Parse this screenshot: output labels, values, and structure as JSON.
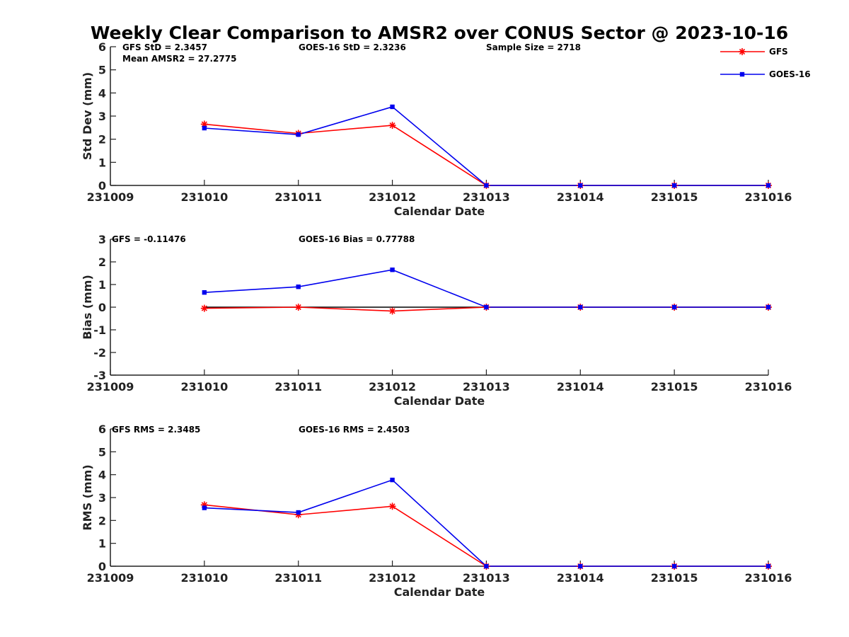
{
  "figure_title": "Weekly Clear Comparison to AMSR2 over CONUS Sector @ 2023-10-16",
  "colors": {
    "gfs": "#ff0000",
    "goes16": "#0000ee",
    "axis": "#222222",
    "zero_line": "#000000"
  },
  "legend": {
    "placement": "top-right",
    "entries": [
      {
        "series": "GFS",
        "marker": "asterisk",
        "color": "#ff0000"
      },
      {
        "series": "GOES-16",
        "marker": "square",
        "color": "#0000ee"
      }
    ]
  },
  "chart_data": [
    {
      "type": "line",
      "xlabel": "Calendar Date",
      "ylabel": "Std Dev (mm)",
      "x": [
        "231009",
        "231010",
        "231011",
        "231012",
        "231013",
        "231014",
        "231015",
        "231016"
      ],
      "yticks": [
        "0",
        "1",
        "2",
        "3",
        "4",
        "5",
        "6"
      ],
      "ylim": [
        0,
        6
      ],
      "grid": false,
      "annotations": [
        "GFS StD = 2.3457",
        "Mean AMSR2 = 27.2775",
        "GOES-16 StD = 2.3236",
        "Sample Size = 2718"
      ],
      "series": [
        {
          "name": "GFS",
          "x": [
            "231010",
            "231011",
            "231012",
            "231013",
            "231014",
            "231015",
            "231016"
          ],
          "values": [
            2.65,
            2.25,
            2.6,
            0,
            0,
            0,
            0
          ]
        },
        {
          "name": "GOES-16",
          "x": [
            "231010",
            "231011",
            "231012",
            "231013",
            "231014",
            "231015",
            "231016"
          ],
          "values": [
            2.48,
            2.2,
            3.4,
            0,
            0,
            0,
            0
          ]
        }
      ]
    },
    {
      "type": "line",
      "xlabel": "Calendar Date",
      "ylabel": "Bias (mm)",
      "x": [
        "231009",
        "231010",
        "231011",
        "231012",
        "231013",
        "231014",
        "231015",
        "231016"
      ],
      "yticks": [
        "-3",
        "-2",
        "-1",
        "0",
        "1",
        "2",
        "3"
      ],
      "ylim": [
        -3,
        3
      ],
      "grid": false,
      "zero_reference_line": true,
      "annotations": [
        "GFS = -0.11476",
        "GOES-16 Bias  = 0.77788"
      ],
      "series": [
        {
          "name": "GFS",
          "x": [
            "231010",
            "231011",
            "231012",
            "231013",
            "231014",
            "231015",
            "231016"
          ],
          "values": [
            -0.05,
            0.0,
            -0.17,
            0,
            0,
            0,
            0
          ]
        },
        {
          "name": "GOES-16",
          "x": [
            "231010",
            "231011",
            "231012",
            "231013",
            "231014",
            "231015",
            "231016"
          ],
          "values": [
            0.65,
            0.9,
            1.65,
            0,
            0,
            0,
            0
          ]
        }
      ]
    },
    {
      "type": "line",
      "xlabel": "Calendar Date",
      "ylabel": "RMS (mm)",
      "x": [
        "231009",
        "231010",
        "231011",
        "231012",
        "231013",
        "231014",
        "231015",
        "231016"
      ],
      "yticks": [
        "0",
        "1",
        "2",
        "3",
        "4",
        "5",
        "6"
      ],
      "ylim": [
        0,
        6
      ],
      "grid": false,
      "annotations": [
        "GFS RMS = 2.3485",
        "GOES-16 RMS = 2.4503"
      ],
      "series": [
        {
          "name": "GFS",
          "x": [
            "231010",
            "231011",
            "231012",
            "231013",
            "231014",
            "231015",
            "231016"
          ],
          "values": [
            2.68,
            2.25,
            2.62,
            0,
            0,
            0,
            0
          ]
        },
        {
          "name": "GOES-16",
          "x": [
            "231010",
            "231011",
            "231012",
            "231013",
            "231014",
            "231015",
            "231016"
          ],
          "values": [
            2.55,
            2.35,
            3.77,
            0,
            0,
            0,
            0
          ]
        }
      ]
    }
  ]
}
